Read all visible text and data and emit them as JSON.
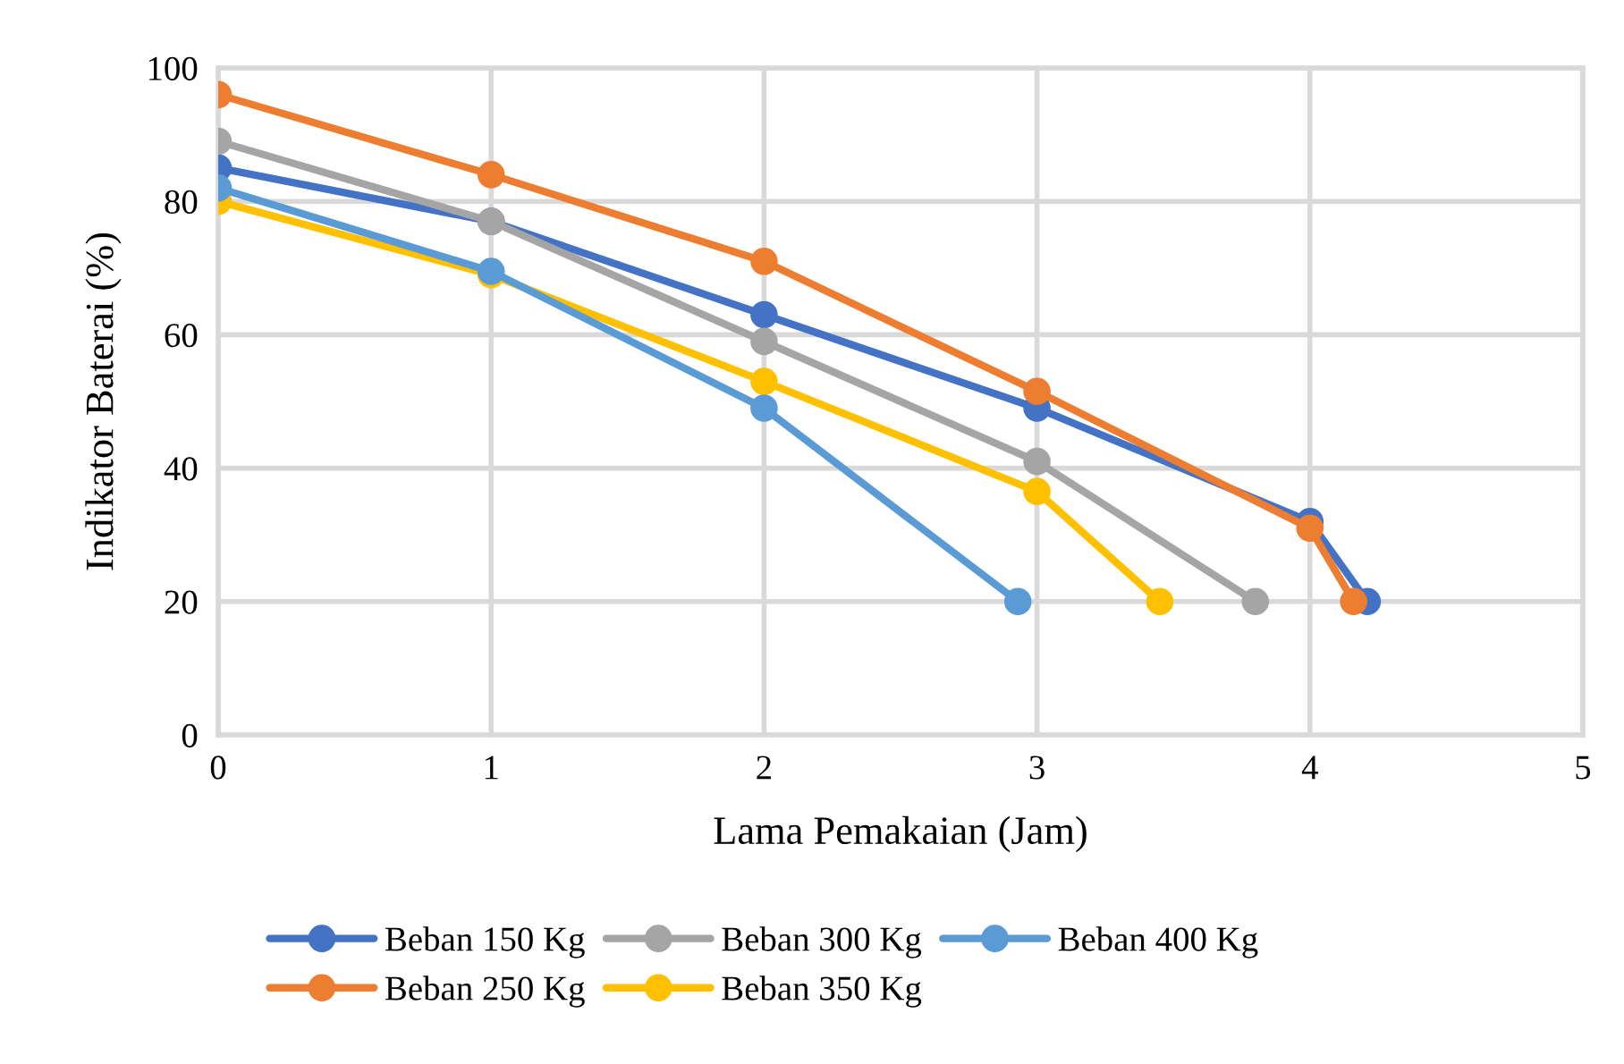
{
  "chart_data": {
    "type": "line",
    "xlabel": "Lama Pemakaian (Jam)",
    "ylabel": "Indikator Baterai (%)",
    "xlim": [
      0,
      5
    ],
    "xticks": [
      0,
      1,
      2,
      3,
      4,
      5
    ],
    "ylim": [
      0,
      100
    ],
    "yticks": [
      0,
      20,
      40,
      60,
      80,
      100
    ],
    "grid": true,
    "legend": "bottom",
    "marker": "circle",
    "line_style": "solid",
    "series": [
      {
        "name": "Beban 150 Kg",
        "color": "#4472c4",
        "x": [
          0,
          1,
          2,
          3,
          4,
          4.21
        ],
        "values": [
          85,
          77,
          63,
          49,
          32,
          20
        ]
      },
      {
        "name": "Beban 250 Kg",
        "color": "#ed7d31",
        "x": [
          0,
          1,
          2,
          3,
          4,
          4.16
        ],
        "values": [
          96,
          84,
          71,
          51.5,
          31,
          20
        ]
      },
      {
        "name": "Beban 300 Kg",
        "color": "#a5a5a5",
        "x": [
          0,
          1,
          2,
          3,
          3.8
        ],
        "values": [
          89,
          77,
          59,
          41,
          20
        ]
      },
      {
        "name": "Beban 350 Kg",
        "color": "#ffc000",
        "x": [
          0,
          1,
          2,
          3,
          3.45
        ],
        "values": [
          80,
          69,
          53,
          36.5,
          20
        ]
      },
      {
        "name": "Beban 400 Kg",
        "color": "#5b9bd5",
        "x": [
          0,
          1,
          2,
          2.93
        ],
        "values": [
          82,
          69.5,
          49,
          20
        ]
      }
    ]
  }
}
